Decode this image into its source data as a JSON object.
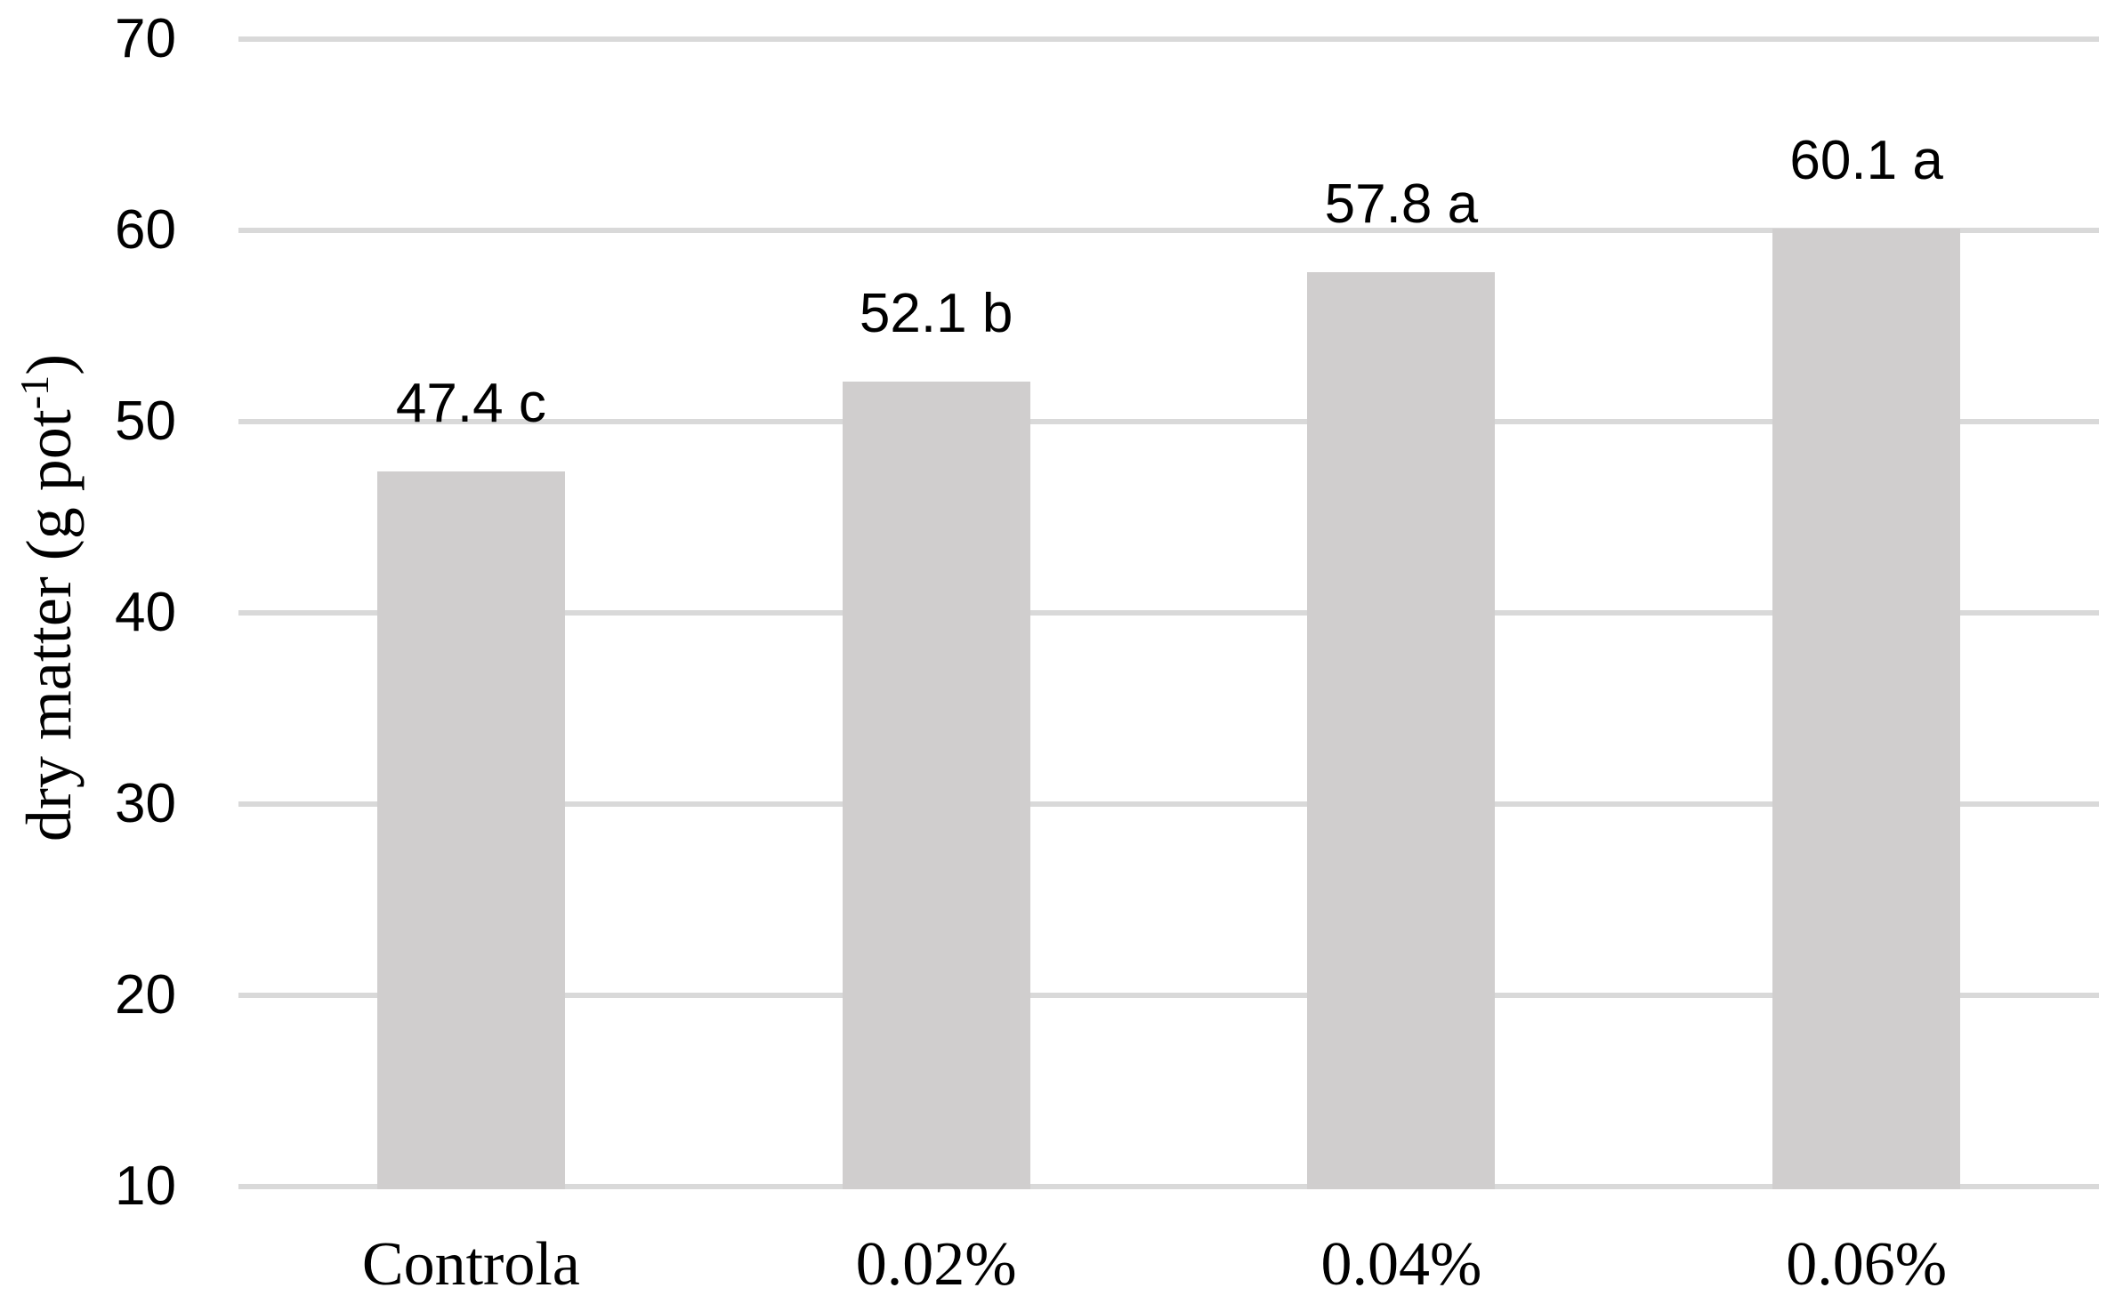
{
  "chart_data": {
    "type": "bar",
    "title": "",
    "categories": [
      "Controla",
      "0.02%",
      "0.04%",
      "0.06%"
    ],
    "values": [
      47.4,
      52.1,
      57.8,
      60.1
    ],
    "bar_labels": [
      "47.4 c",
      "52.1 b",
      "57.8 a",
      "60.1 a"
    ],
    "significance_letters": [
      "c",
      "b",
      "a",
      "a"
    ],
    "ylabel_parts": {
      "prefix": "dry matter (g pot",
      "superscript": "-1",
      "suffix": ")"
    },
    "ylabel_plain": "dry matter (g pot-1)",
    "xlabel": "",
    "ylim": [
      10,
      70
    ],
    "ytick_step": 10,
    "yticks": [
      10,
      20,
      30,
      40,
      50,
      60,
      70
    ],
    "grid": "horizontal-only",
    "legend": "none",
    "bar_color": "#d0cece",
    "gridline_color": "#d9d9d9",
    "text_color": "#000000",
    "background_color": "#ffffff"
  }
}
